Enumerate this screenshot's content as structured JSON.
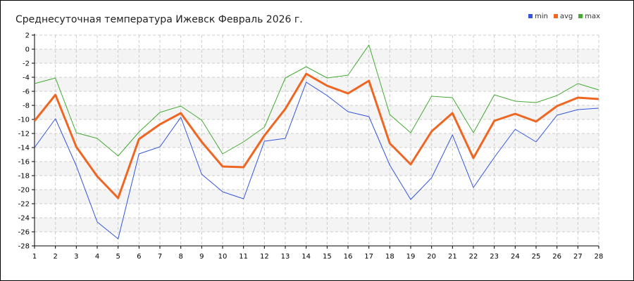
{
  "chart_data": {
    "type": "line",
    "title": "Среднесуточная температура Ижевск  Февраль 2026 г.",
    "xlabel": "",
    "ylabel": "",
    "x": [
      1,
      2,
      3,
      4,
      5,
      6,
      7,
      8,
      9,
      10,
      11,
      12,
      13,
      14,
      15,
      16,
      17,
      18,
      19,
      20,
      21,
      22,
      23,
      24,
      25,
      26,
      27,
      28
    ],
    "xlim": [
      1,
      28
    ],
    "ylim": [
      -28,
      2
    ],
    "yticks": [
      2,
      0,
      -2,
      -4,
      -6,
      -8,
      -10,
      -12,
      -14,
      -16,
      -18,
      -20,
      -22,
      -24,
      -26,
      -28
    ],
    "grid": true,
    "legend_position": "top-right",
    "series": [
      {
        "name": "min",
        "color": "#3355dd",
        "values": [
          -14.0,
          -9.9,
          -16.6,
          -24.6,
          -27.0,
          -14.9,
          -13.9,
          -9.7,
          -17.8,
          -20.3,
          -21.3,
          -13.1,
          -12.7,
          -4.7,
          -6.6,
          -8.9,
          -9.6,
          -16.5,
          -21.4,
          -18.3,
          -12.2,
          -19.7,
          -15.4,
          -11.4,
          -13.2,
          -9.4,
          -8.6,
          -8.4
        ]
      },
      {
        "name": "avg",
        "color": "#ee6622",
        "values": [
          -10.2,
          -6.5,
          -13.9,
          -18.1,
          -21.2,
          -12.8,
          -10.7,
          -9.1,
          -13.2,
          -16.7,
          -16.8,
          -12.3,
          -8.5,
          -3.5,
          -5.2,
          -6.3,
          -4.5,
          -13.4,
          -16.4,
          -11.7,
          -9.1,
          -15.5,
          -10.2,
          -9.2,
          -10.3,
          -8.1,
          -6.9,
          -7.1
        ]
      },
      {
        "name": "max",
        "color": "#44aa33",
        "values": [
          -4.9,
          -4.1,
          -11.9,
          -12.7,
          -15.2,
          -11.8,
          -9.0,
          -8.1,
          -10.1,
          -14.9,
          -13.2,
          -11.1,
          -4.1,
          -2.5,
          -4.1,
          -3.7,
          0.6,
          -9.3,
          -11.9,
          -6.7,
          -6.9,
          -11.9,
          -6.5,
          -7.4,
          -7.6,
          -6.6,
          -4.9,
          -5.8
        ]
      }
    ]
  }
}
